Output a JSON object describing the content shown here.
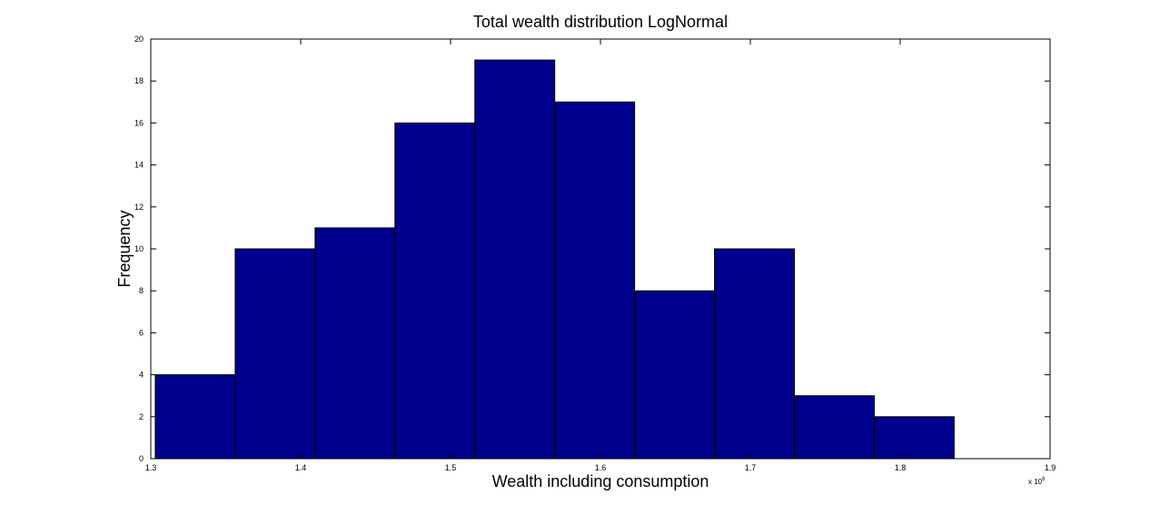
{
  "chart_data": {
    "type": "bar",
    "title": "Total wealth distribution LogNormal",
    "xlabel": "Wealth including consumption",
    "ylabel": "Frequency",
    "x_exponent_label": "x 10",
    "x_exponent_power": "6",
    "xlim": [
      1.3,
      1.9
    ],
    "ylim": [
      0,
      20
    ],
    "x_ticks": [
      "1.3",
      "1.4",
      "1.5",
      "1.6",
      "1.7",
      "1.8",
      "1.9"
    ],
    "y_ticks": [
      "0",
      "2",
      "4",
      "6",
      "8",
      "10",
      "12",
      "14",
      "16",
      "18",
      "20"
    ],
    "bin_edges": [
      1.303,
      1.3563,
      1.4096,
      1.4629,
      1.5162,
      1.5695,
      1.6228,
      1.6761,
      1.7294,
      1.7827,
      1.836
    ],
    "values": [
      4,
      10,
      11,
      16,
      19,
      17,
      8,
      10,
      3,
      2
    ],
    "grid": false,
    "bar_color": "#00008f",
    "edge_color": "#000000"
  }
}
